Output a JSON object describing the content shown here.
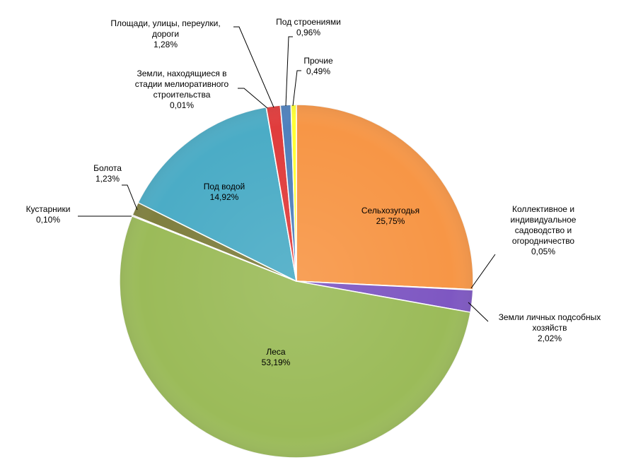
{
  "chart_data": {
    "type": "pie",
    "title": "",
    "colors": {
      "ag": "#f79646",
      "garden": "#8064a2",
      "private": "#7e57c2",
      "forest": "#9bbb59",
      "shrubs": "#c0504d",
      "swamps": "#7f7f3f",
      "water": "#4bacc6",
      "melior": "#4f81bd",
      "roads": "#e03c3c",
      "buildings": "#4f81bd",
      "other": "#ffff33"
    },
    "slices": [
      {
        "key": "ag",
        "label_lines": [
          "Сельхозугодья"
        ],
        "value_text": "25,75%",
        "value": 25.75
      },
      {
        "key": "garden",
        "label_lines": [
          "Коллективное и",
          "индивидуальное",
          "садоводство и",
          "огородничество"
        ],
        "value_text": "0,05%",
        "value": 0.05
      },
      {
        "key": "private",
        "label_lines": [
          "Земли личных подсобных",
          "хозяйств"
        ],
        "value_text": "2,02%",
        "value": 2.02
      },
      {
        "key": "forest",
        "label_lines": [
          "Леса"
        ],
        "value_text": "53,19%",
        "value": 53.19
      },
      {
        "key": "shrubs",
        "label_lines": [
          "Кустарники"
        ],
        "value_text": "0,10%",
        "value": 0.1
      },
      {
        "key": "swamps",
        "label_lines": [
          "Болота"
        ],
        "value_text": "1,23%",
        "value": 1.23
      },
      {
        "key": "water",
        "label_lines": [
          "Под водой"
        ],
        "value_text": "14,92%",
        "value": 14.92
      },
      {
        "key": "melior",
        "label_lines": [
          "Земли, находящиеся в",
          "стадии мелиоративного",
          "строительства"
        ],
        "value_text": "0,01%",
        "value": 0.01
      },
      {
        "key": "roads",
        "label_lines": [
          "Площади, улицы, переулки,",
          "дороги"
        ],
        "value_text": "1,28%",
        "value": 1.28
      },
      {
        "key": "buildings",
        "label_lines": [
          "Под строениями"
        ],
        "value_text": "0,96%",
        "value": 0.96
      },
      {
        "key": "other",
        "label_lines": [
          "Прочие"
        ],
        "value_text": "0,49%",
        "value": 0.49
      }
    ]
  }
}
